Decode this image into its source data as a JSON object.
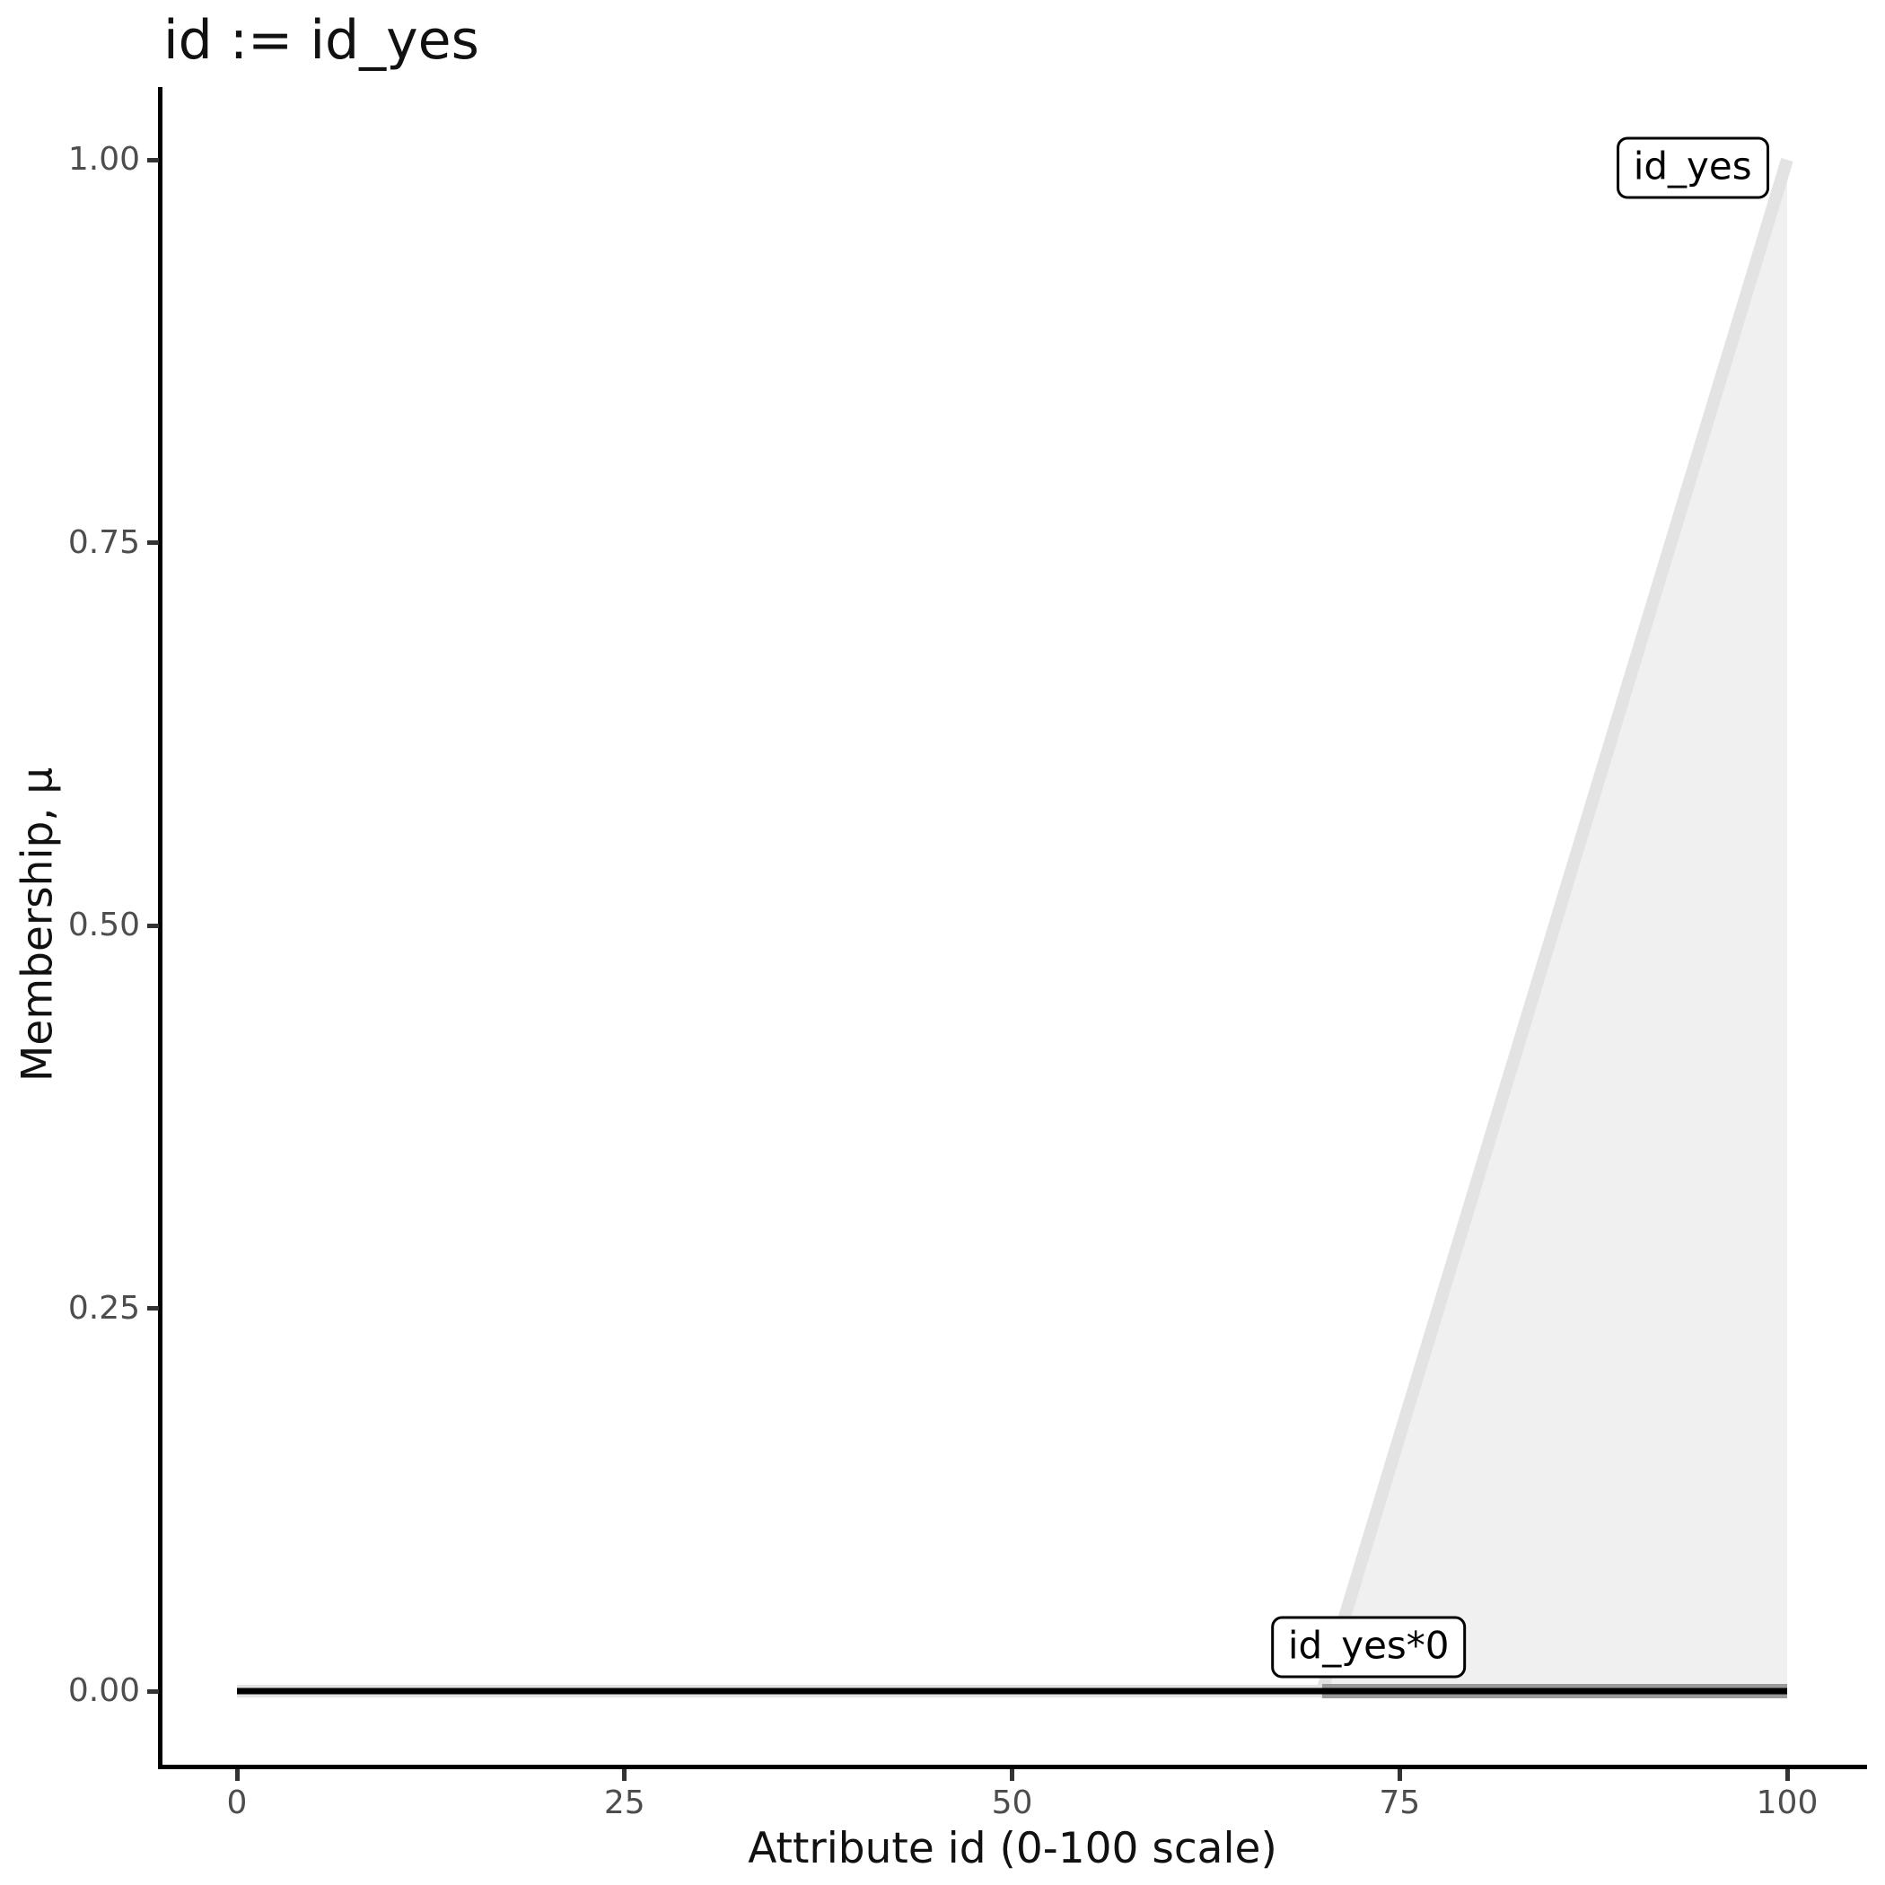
{
  "chart": {
    "title": "id := id_yes",
    "xlabel": "Attribute id (0-100 scale)",
    "ylabel": "Membership, μ"
  },
  "chart_data": {
    "type": "area",
    "title": "id := id_yes",
    "xlabel": "Attribute id (0-100 scale)",
    "ylabel": "Membership, μ",
    "xlim": [
      0,
      100
    ],
    "ylim": [
      0,
      1
    ],
    "grid": false,
    "legend": "none",
    "x_ticks": [
      {
        "value": 0,
        "label": "0"
      },
      {
        "value": 25,
        "label": "25"
      },
      {
        "value": 50,
        "label": "50"
      },
      {
        "value": 75,
        "label": "75"
      },
      {
        "value": 100,
        "label": "100"
      }
    ],
    "y_ticks": [
      {
        "value": 0.0,
        "label": "0.00"
      },
      {
        "value": 0.25,
        "label": "0.25"
      },
      {
        "value": 0.5,
        "label": "0.50"
      },
      {
        "value": 0.75,
        "label": "0.75"
      },
      {
        "value": 1.0,
        "label": "1.00"
      }
    ],
    "series": [
      {
        "name": "id_yes",
        "type": "line",
        "color": "#e3e3e3",
        "stroke_width": 14,
        "points": [
          [
            0,
            0
          ],
          [
            70,
            0
          ],
          [
            100,
            1
          ]
        ],
        "fill": {
          "color": "#f0f0f0",
          "polygon": [
            [
              70,
              0
            ],
            [
              100,
              1
            ],
            [
              100,
              0
            ]
          ]
        }
      },
      {
        "name": "id_yes*0",
        "type": "line",
        "color": "#9a9a9a",
        "stroke_width": 16,
        "points": [
          [
            70,
            0
          ],
          [
            100,
            0
          ]
        ]
      },
      {
        "name": "zero-baseline",
        "type": "line",
        "color": "#000000",
        "stroke_width": 7,
        "points": [
          [
            0,
            0
          ],
          [
            100,
            0
          ]
        ]
      }
    ],
    "annotations": [
      {
        "label": "id_yes",
        "x": 93.9,
        "mu": 0.995
      },
      {
        "label": "id_yes*0",
        "x": 73.0,
        "mu": 0.029
      }
    ]
  }
}
